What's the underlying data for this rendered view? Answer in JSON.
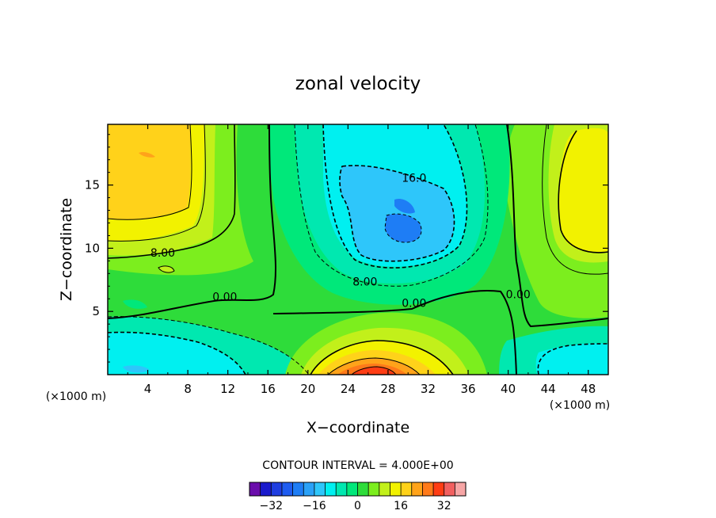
{
  "chart_data": {
    "type": "contour",
    "title": "zonal velocity",
    "xlabel": "X−coordinate",
    "ylabel": "Z−coordinate",
    "x_unit_left": "(×1000 m)",
    "x_unit_right": "(×1000 m)",
    "xlim": [
      0,
      50
    ],
    "ylim": [
      0,
      19.8
    ],
    "x_ticks": [
      4,
      8,
      12,
      16,
      20,
      24,
      28,
      32,
      36,
      40,
      44,
      48
    ],
    "y_ticks": [
      5,
      10,
      15
    ],
    "contour_interval_text": "CONTOUR INTERVAL = 4.000E+00",
    "contour_labels": [
      {
        "text": "16.0",
        "x": 30.6,
        "y": 15.5
      },
      {
        "text": "8.00",
        "x": 5.5,
        "y": 9.6
      },
      {
        "text": "8.00",
        "x": 25.7,
        "y": 7.3
      },
      {
        "text": "0.00",
        "x": 11.7,
        "y": 6.1
      },
      {
        "text": "0.00",
        "x": 30.6,
        "y": 5.6
      },
      {
        "text": "0.00",
        "x": 41.0,
        "y": 6.3
      }
    ],
    "colorbar": {
      "levels": [
        -36,
        -32,
        -28,
        -24,
        -20,
        -16,
        -12,
        -8,
        -4,
        0,
        4,
        8,
        12,
        16,
        20,
        24,
        28,
        32,
        36
      ],
      "colors": [
        "#6a0dab",
        "#1a1acc",
        "#1f3ee0",
        "#1e5cf0",
        "#1e7df5",
        "#2aa1f7",
        "#2ec6fa",
        "#00f0f0",
        "#00e8b0",
        "#00e87a",
        "#2edc3a",
        "#7cee1e",
        "#c2f01a",
        "#f2f200",
        "#ffd21a",
        "#ffa31a",
        "#ff7a1a",
        "#ff3d14",
        "#f26060",
        "#f7a6a6"
      ],
      "tick_labels": [
        "−32",
        "−16",
        "0",
        "16",
        "32"
      ],
      "tick_values": [
        -32,
        -16,
        0,
        16,
        32
      ]
    },
    "field_features": [
      {
        "kind": "negative core",
        "x": 29.0,
        "y": 13.0,
        "min_value": -24
      },
      {
        "kind": "positive core",
        "x": 27.0,
        "y": 0.8,
        "max_value": 28
      },
      {
        "kind": "positive region",
        "x": 4.0,
        "y": 16.5,
        "max_value": 16
      },
      {
        "kind": "positive region",
        "x": 47.0,
        "y": 12.5,
        "max_value": 12
      },
      {
        "kind": "negative region",
        "x": 4.0,
        "y": 1.5,
        "min_value": -12
      },
      {
        "kind": "negative region",
        "x": 46.0,
        "y": 1.5,
        "min_value": -8
      }
    ]
  }
}
